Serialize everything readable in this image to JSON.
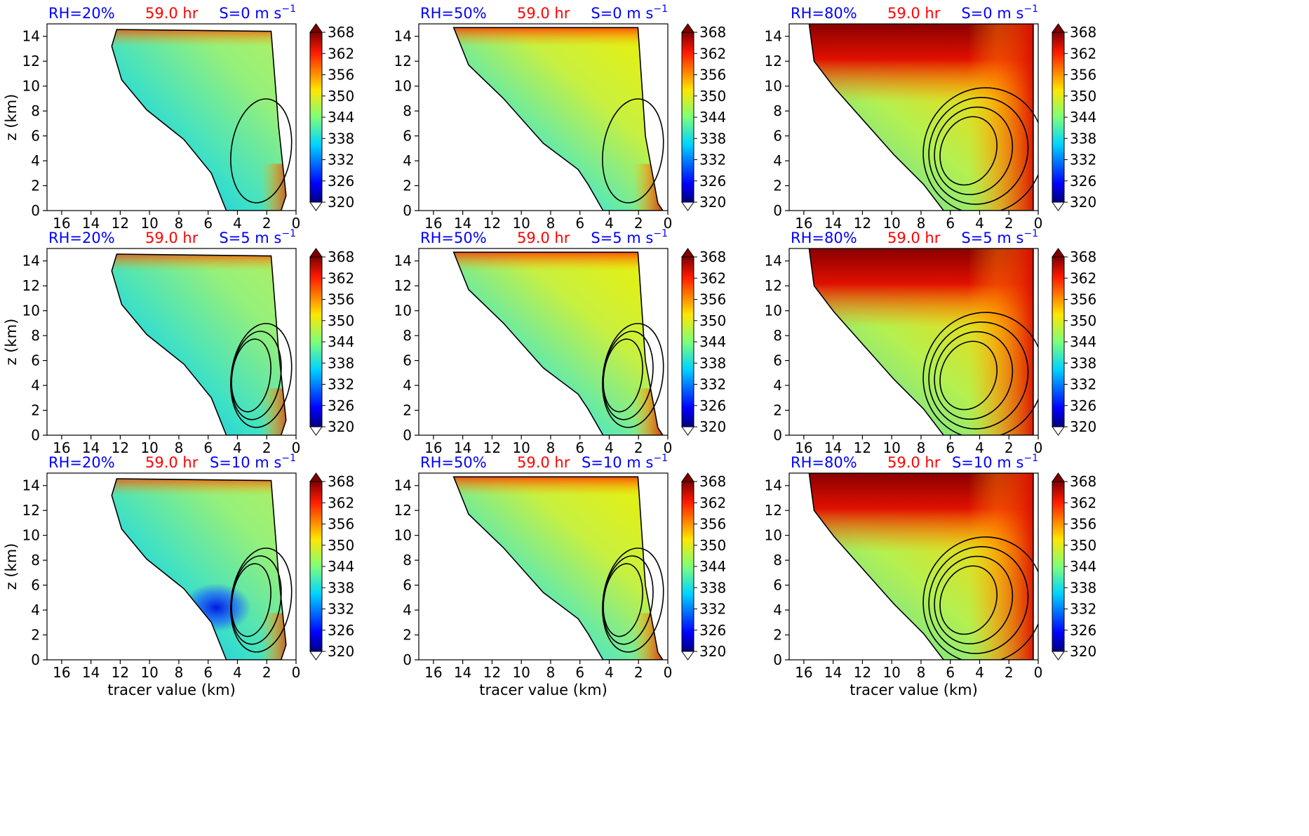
{
  "figure": {
    "time_label": "59.0 hr",
    "xlabel": "tracer value (km)",
    "ylabel": "z (km)",
    "shear_unit": "m s",
    "shear_exponent": "−1",
    "colors": {
      "rh_text": "#0000ff",
      "time_text": "#ff0000",
      "shear_text": "#0000ff",
      "contour": "#000000",
      "axis": "#000000"
    }
  },
  "chart_data": [
    {
      "type": "heatmap",
      "row": 0,
      "col": 0,
      "rh_label": "RH=20%",
      "shear_label": "S=0",
      "theme": "dry",
      "xlim": [
        17,
        0
      ],
      "ylim": [
        0,
        15
      ],
      "xticks": [
        "16",
        "14",
        "12",
        "10",
        "8",
        "6",
        "4",
        "2",
        "0"
      ],
      "yticks": [
        "0",
        "2",
        "4",
        "6",
        "8",
        "10",
        "12",
        "14"
      ],
      "colorbar_ticks": [
        "368",
        "362",
        "356",
        "350",
        "344",
        "338",
        "332",
        "326",
        "320"
      ],
      "colorbar_range": [
        320,
        368
      ]
    },
    {
      "type": "heatmap",
      "row": 0,
      "col": 1,
      "rh_label": "RH=50%",
      "shear_label": "S=0",
      "theme": "mid",
      "xlim": [
        17,
        0
      ],
      "ylim": [
        0,
        15
      ],
      "xticks": [
        "16",
        "14",
        "12",
        "10",
        "8",
        "6",
        "4",
        "2",
        "0"
      ],
      "yticks": [
        "0",
        "2",
        "4",
        "6",
        "8",
        "10",
        "12",
        "14"
      ],
      "colorbar_ticks": [
        "368",
        "362",
        "356",
        "350",
        "344",
        "338",
        "332",
        "326",
        "320"
      ],
      "colorbar_range": [
        320,
        368
      ]
    },
    {
      "type": "heatmap",
      "row": 0,
      "col": 2,
      "rh_label": "RH=80%",
      "shear_label": "S=0",
      "theme": "moist",
      "xlim": [
        17,
        0
      ],
      "ylim": [
        0,
        15
      ],
      "xticks": [
        "16",
        "14",
        "12",
        "10",
        "8",
        "6",
        "4",
        "2",
        "0"
      ],
      "yticks": [
        "0",
        "2",
        "4",
        "6",
        "8",
        "10",
        "12",
        "14"
      ],
      "colorbar_ticks": [
        "368",
        "362",
        "356",
        "350",
        "344",
        "338",
        "332",
        "326",
        "320"
      ],
      "colorbar_range": [
        320,
        368
      ]
    },
    {
      "type": "heatmap",
      "row": 1,
      "col": 0,
      "rh_label": "RH=20%",
      "shear_label": "S=5",
      "theme": "dry",
      "xlim": [
        17,
        0
      ],
      "ylim": [
        0,
        15
      ],
      "xticks": [
        "16",
        "14",
        "12",
        "10",
        "8",
        "6",
        "4",
        "2",
        "0"
      ],
      "yticks": [
        "0",
        "2",
        "4",
        "6",
        "8",
        "10",
        "12",
        "14"
      ],
      "colorbar_ticks": [
        "368",
        "362",
        "356",
        "350",
        "344",
        "338",
        "332",
        "326",
        "320"
      ],
      "colorbar_range": [
        320,
        368
      ]
    },
    {
      "type": "heatmap",
      "row": 1,
      "col": 1,
      "rh_label": "RH=50%",
      "shear_label": "S=5",
      "theme": "mid",
      "xlim": [
        17,
        0
      ],
      "ylim": [
        0,
        15
      ],
      "xticks": [
        "16",
        "14",
        "12",
        "10",
        "8",
        "6",
        "4",
        "2",
        "0"
      ],
      "yticks": [
        "0",
        "2",
        "4",
        "6",
        "8",
        "10",
        "12",
        "14"
      ],
      "colorbar_ticks": [
        "368",
        "362",
        "356",
        "350",
        "344",
        "338",
        "332",
        "326",
        "320"
      ],
      "colorbar_range": [
        320,
        368
      ]
    },
    {
      "type": "heatmap",
      "row": 1,
      "col": 2,
      "rh_label": "RH=80%",
      "shear_label": "S=5",
      "theme": "moist",
      "xlim": [
        17,
        0
      ],
      "ylim": [
        0,
        15
      ],
      "xticks": [
        "16",
        "14",
        "12",
        "10",
        "8",
        "6",
        "4",
        "2",
        "0"
      ],
      "yticks": [
        "0",
        "2",
        "4",
        "6",
        "8",
        "10",
        "12",
        "14"
      ],
      "colorbar_ticks": [
        "368",
        "362",
        "356",
        "350",
        "344",
        "338",
        "332",
        "326",
        "320"
      ],
      "colorbar_range": [
        320,
        368
      ]
    },
    {
      "type": "heatmap",
      "row": 2,
      "col": 0,
      "rh_label": "RH=20%",
      "shear_label": "S=10",
      "theme": "dry",
      "xlim": [
        17,
        0
      ],
      "ylim": [
        0,
        15
      ],
      "xticks": [
        "16",
        "14",
        "12",
        "10",
        "8",
        "6",
        "4",
        "2",
        "0"
      ],
      "yticks": [
        "0",
        "2",
        "4",
        "6",
        "8",
        "10",
        "12",
        "14"
      ],
      "colorbar_ticks": [
        "368",
        "362",
        "356",
        "350",
        "344",
        "338",
        "332",
        "326",
        "320"
      ],
      "colorbar_range": [
        320,
        368
      ]
    },
    {
      "type": "heatmap",
      "row": 2,
      "col": 1,
      "rh_label": "RH=50%",
      "shear_label": "S=10",
      "theme": "mid",
      "xlim": [
        17,
        0
      ],
      "ylim": [
        0,
        15
      ],
      "xticks": [
        "16",
        "14",
        "12",
        "10",
        "8",
        "6",
        "4",
        "2",
        "0"
      ],
      "yticks": [
        "0",
        "2",
        "4",
        "6",
        "8",
        "10",
        "12",
        "14"
      ],
      "colorbar_ticks": [
        "368",
        "362",
        "356",
        "350",
        "344",
        "338",
        "332",
        "326",
        "320"
      ],
      "colorbar_range": [
        320,
        368
      ]
    },
    {
      "type": "heatmap",
      "row": 2,
      "col": 2,
      "rh_label": "RH=80%",
      "shear_label": "S=10",
      "theme": "moist",
      "xlim": [
        17,
        0
      ],
      "ylim": [
        0,
        15
      ],
      "xticks": [
        "16",
        "14",
        "12",
        "10",
        "8",
        "6",
        "4",
        "2",
        "0"
      ],
      "yticks": [
        "0",
        "2",
        "4",
        "6",
        "8",
        "10",
        "12",
        "14"
      ],
      "colorbar_ticks": [
        "368",
        "362",
        "356",
        "350",
        "344",
        "338",
        "332",
        "326",
        "320"
      ],
      "colorbar_range": [
        320,
        368
      ]
    }
  ]
}
